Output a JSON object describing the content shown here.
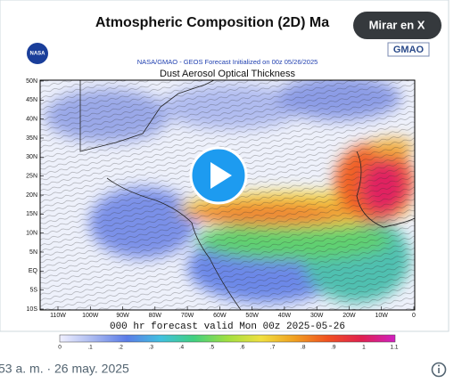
{
  "video": {
    "title": "Atmospheric Composition (2D) Ma",
    "watch_button": "Mirar en X",
    "nasa_logo": "NASA",
    "gmao_logo": "GMAO",
    "subtitle": "NASA/GMAO - GEOS Forecast Initialized on 00z 05/26/2025",
    "map_title": "Dust Aerosol Optical Thickness",
    "lat_labels": [
      "50N",
      "45N",
      "40N",
      "35N",
      "30N",
      "25N",
      "20N",
      "15N",
      "10N",
      "5N",
      "EQ",
      "5S",
      "10S"
    ],
    "lon_labels": [
      "110W",
      "100W",
      "90W",
      "80W",
      "70W",
      "60W",
      "50W",
      "40W",
      "30W",
      "20W",
      "10W",
      "0"
    ],
    "forecast_label": "000 hr forecast valid Mon 00z 2025-05-26",
    "colorbar_labels": [
      "0",
      ".1",
      ".2",
      ".3",
      ".4",
      ".5",
      ".6",
      ".7",
      ".8",
      ".9",
      "1",
      "1.1"
    ]
  },
  "footer": {
    "timestamp": "53 a. m. · 26 may. 2025"
  }
}
